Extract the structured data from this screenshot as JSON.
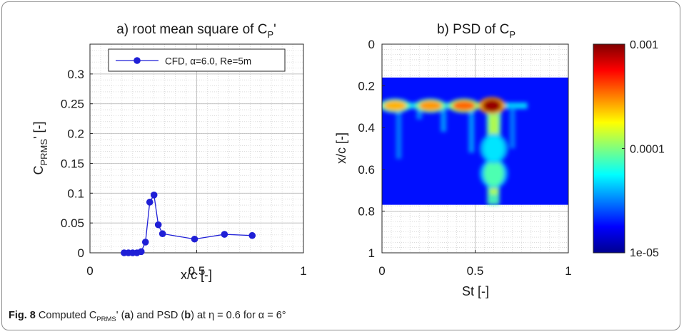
{
  "chart_data": [
    {
      "type": "line",
      "title": "a) root mean square of C",
      "title_sub": "P",
      "title_suffix": "'",
      "xlabel": "x/c [-]",
      "ylabel": "C",
      "ylabel_sub": "PRMS",
      "ylabel_suffix": "' [-]",
      "xlim": [
        0,
        1
      ],
      "ylim": [
        0,
        0.35
      ],
      "xticks": [
        "0",
        "0.5",
        "1"
      ],
      "xtick_values": [
        0,
        0.5,
        1
      ],
      "yticks": [
        "0",
        "0.05",
        "0.1",
        "0.15",
        "0.2",
        "0.25",
        "0.3"
      ],
      "ytick_values": [
        0,
        0.05,
        0.1,
        0.15,
        0.2,
        0.25,
        0.3
      ],
      "grid": true,
      "legend_position": "top",
      "series_color": "#1f1fd6",
      "series": [
        {
          "name": "CFD, α=6.0, Re=5m",
          "x": [
            0.16,
            0.18,
            0.2,
            0.22,
            0.24,
            0.26,
            0.28,
            0.3,
            0.32,
            0.34,
            0.49,
            0.63,
            0.76
          ],
          "y": [
            0.0,
            0.0,
            0.0,
            0.0,
            0.002,
            0.018,
            0.085,
            0.097,
            0.047,
            0.032,
            0.023,
            0.031,
            0.029
          ]
        }
      ]
    },
    {
      "type": "heatmap",
      "title": "b) PSD of C",
      "title_sub": "P",
      "xlabel": "St [-]",
      "ylabel": "x/c [-]",
      "xlim": [
        0,
        1
      ],
      "ylim": [
        0,
        1
      ],
      "y_reversed": true,
      "xticks": [
        "0",
        "0.5",
        "1"
      ],
      "xtick_values": [
        0,
        0.5,
        1
      ],
      "yticks": [
        "0",
        "0.2",
        "0.4",
        "0.6",
        "0.8",
        "1"
      ],
      "ytick_values": [
        0,
        0.2,
        0.4,
        0.6,
        0.8,
        1
      ],
      "grid": true,
      "data_extent_y": [
        0.16,
        0.77
      ],
      "colorbar": {
        "scale": "log",
        "min": 1e-05,
        "max": 0.001,
        "labels": [
          "0.001",
          "0.0001",
          "1e-05"
        ],
        "label_values": [
          0.001,
          0.0001,
          1e-05
        ],
        "colormap": "jet"
      },
      "hotspots": [
        {
          "st": 0.07,
          "xc": 0.295,
          "value": 0.00025
        },
        {
          "st": 0.26,
          "xc": 0.295,
          "value": 0.00028
        },
        {
          "st": 0.44,
          "xc": 0.295,
          "value": 0.00035
        },
        {
          "st": 0.59,
          "xc": 0.295,
          "value": 0.0009
        },
        {
          "st": 0.6,
          "xc": 0.62,
          "value": 8e-05
        },
        {
          "st": 0.6,
          "xc": 0.5,
          "value": 5e-05
        }
      ]
    }
  ],
  "caption": {
    "label": "Fig. 8",
    "text_1": " Computed C",
    "sub": "PRMS",
    "text_2": "' (",
    "a": "a",
    "text_3": ") and PSD (",
    "b": "b",
    "text_4": ") at η = 0.6 for α = 6°"
  }
}
